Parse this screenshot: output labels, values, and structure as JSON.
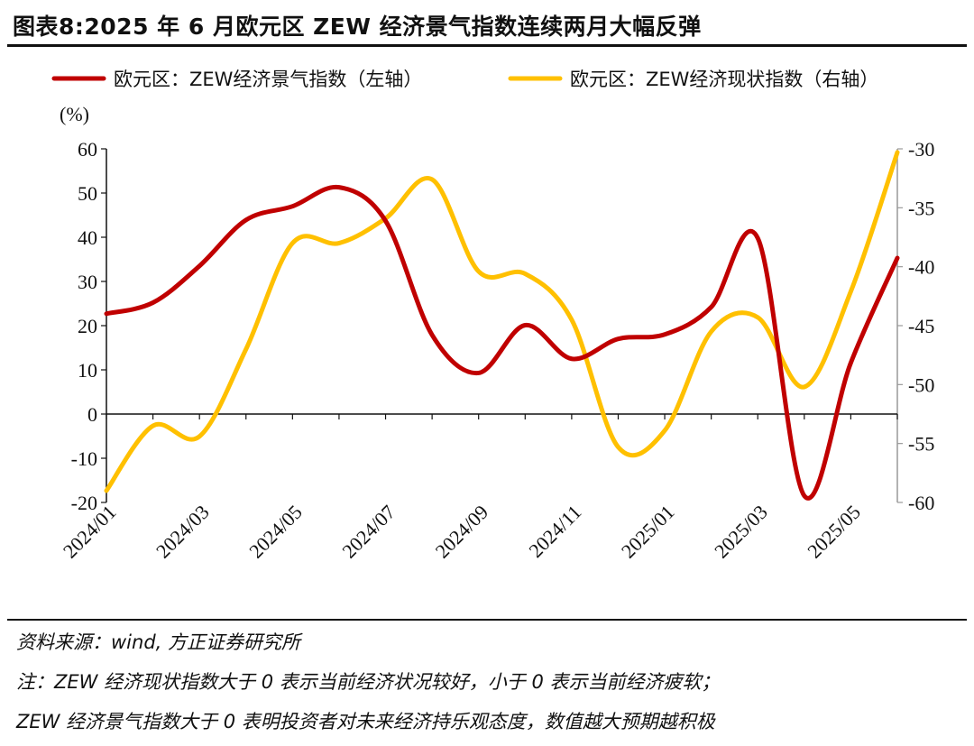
{
  "title": "图表8:2025 年 6 月欧元区 ZEW 经济景气指数连续两月大幅反弹",
  "footer": {
    "source": "资料来源：wind, 方正证券研究所",
    "note1": "注：ZEW 经济现状指数大于 0 表示当前经济状况较好，小于 0 表示当前经济疲软；",
    "note2": "ZEW 经济景气指数大于 0 表明投资者对未来经济持乐观态度，数值越大预期越积极"
  },
  "chart_data": {
    "type": "line",
    "unit_label": "(%)",
    "x": [
      "2024/01",
      "2024/02",
      "2024/03",
      "2024/04",
      "2024/05",
      "2024/06",
      "2024/07",
      "2024/08",
      "2024/09",
      "2024/10",
      "2024/11",
      "2024/12",
      "2025/01",
      "2025/02",
      "2025/03",
      "2025/04",
      "2025/05",
      "2025/06"
    ],
    "x_tick_labels": [
      "2024/01",
      "2024/03",
      "2024/05",
      "2024/07",
      "2024/09",
      "2024/11",
      "2025/01",
      "2025/03",
      "2025/05"
    ],
    "y_left": {
      "lim": [
        -20,
        60
      ],
      "ticks": [
        "60",
        "50",
        "40",
        "30",
        "20",
        "10",
        "0",
        "-10",
        "-20"
      ]
    },
    "y_right": {
      "lim": [
        -60,
        -30
      ],
      "ticks": [
        "-30",
        "-35",
        "-40",
        "-45",
        "-50",
        "-55",
        "-60"
      ]
    },
    "grid": false,
    "legend_position": "top",
    "series": [
      {
        "name": "欧元区：ZEW经济景气指数（左轴）",
        "axis": "left",
        "color": "#C00000",
        "values": [
          22.7,
          25.2,
          33.5,
          43.9,
          47.0,
          51.3,
          43.7,
          17.9,
          9.3,
          20.1,
          12.5,
          17.0,
          18.0,
          24.2,
          39.8,
          -18.5,
          11.6,
          35.3
        ]
      },
      {
        "name": "欧元区：ZEW经济现状指数（右轴）",
        "axis": "right",
        "color": "#FFC000",
        "values": [
          -59.0,
          -53.5,
          -54.4,
          -47.0,
          -38.0,
          -38.0,
          -35.9,
          -32.6,
          -40.4,
          -40.6,
          -44.5,
          -55.3,
          -53.9,
          -45.5,
          -44.3,
          -50.2,
          -42.1,
          -30.3
        ]
      }
    ]
  }
}
